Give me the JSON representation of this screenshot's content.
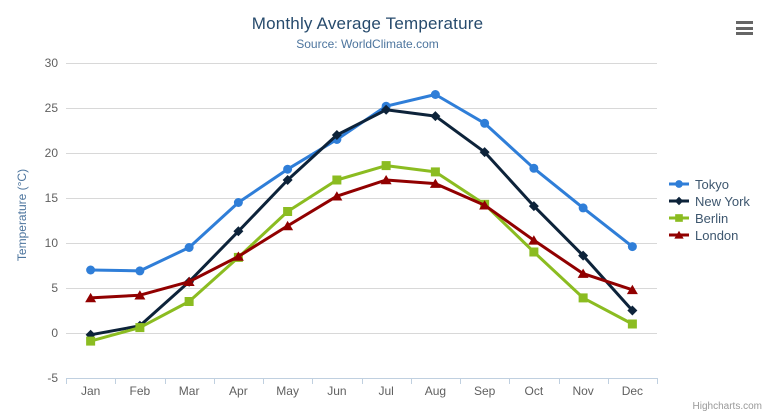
{
  "page": {
    "credits": "Highcharts.com",
    "icons": {
      "context_menu": "hamburger"
    }
  },
  "chart_data": {
    "type": "line",
    "title": "Monthly Average Temperature",
    "subtitle": "Source: WorldClimate.com",
    "xlabel": "",
    "ylabel": "Temperature (°C)",
    "categories": [
      "Jan",
      "Feb",
      "Mar",
      "Apr",
      "May",
      "Jun",
      "Jul",
      "Aug",
      "Sep",
      "Oct",
      "Nov",
      "Dec"
    ],
    "ylim": [
      -5,
      30
    ],
    "ytick_interval": 5,
    "grid": true,
    "legend_position": "right",
    "series": [
      {
        "name": "Tokyo",
        "color": "#2f7ed8",
        "marker": "circle",
        "values": [
          7.0,
          6.9,
          9.5,
          14.5,
          18.2,
          21.5,
          25.2,
          26.5,
          23.3,
          18.3,
          13.9,
          9.6
        ]
      },
      {
        "name": "New York",
        "color": "#0d233a",
        "marker": "diamond",
        "values": [
          -0.2,
          0.8,
          5.7,
          11.3,
          17.0,
          22.0,
          24.8,
          24.1,
          20.1,
          14.1,
          8.6,
          2.5
        ]
      },
      {
        "name": "Berlin",
        "color": "#8bbc21",
        "marker": "square",
        "values": [
          -0.9,
          0.6,
          3.5,
          8.4,
          13.5,
          17.0,
          18.6,
          17.9,
          14.3,
          9.0,
          3.9,
          1.0
        ]
      },
      {
        "name": "London",
        "color": "#910000",
        "marker": "triangle",
        "values": [
          3.9,
          4.2,
          5.7,
          8.5,
          11.9,
          15.2,
          17.0,
          16.6,
          14.2,
          10.3,
          6.6,
          4.8
        ]
      }
    ],
    "colors": {
      "title": "#274b6d",
      "subtitle": "#4d759e",
      "axis_title": "#4d759e",
      "tick_labels": "#606060",
      "gridline": "#d8d8d8",
      "axis_line": "#c0d0e0",
      "legend_text": "#3e576f"
    }
  }
}
